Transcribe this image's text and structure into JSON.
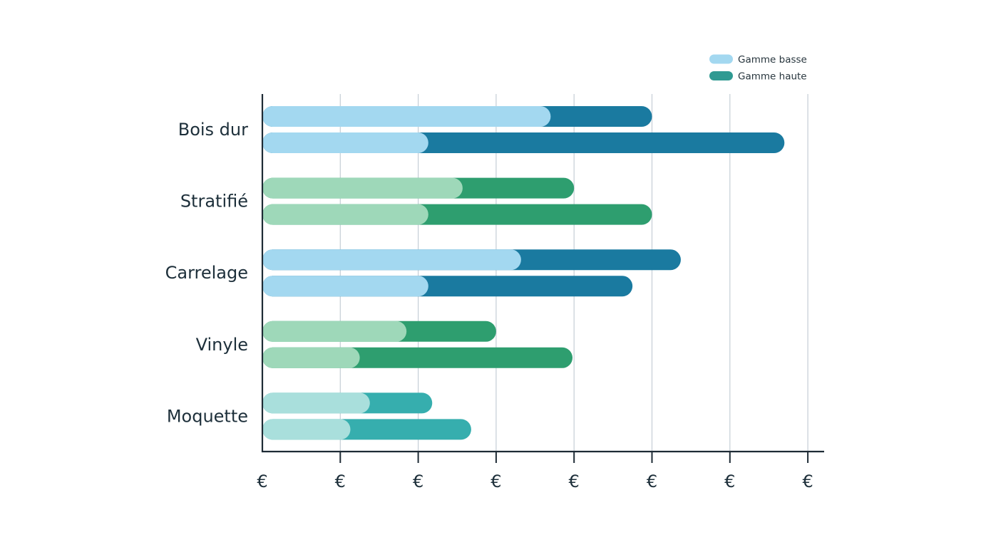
{
  "chart_data": {
    "type": "bar",
    "orientation": "horizontal",
    "stacked": true,
    "categories": [
      "Bois dur",
      "Stratifié",
      "Carrelage",
      "Vinyle",
      "Moquette"
    ],
    "x_ticks": [
      "€",
      "€",
      "€",
      "€",
      "€",
      "€",
      "€",
      "€"
    ],
    "xlim": [
      0,
      7
    ],
    "grid": true,
    "legend_position": "top-right",
    "legend": [
      {
        "label": "Gamme basse",
        "color": "#a3d8f0"
      },
      {
        "label": "Gamme haute",
        "color": "#2f9a92"
      }
    ],
    "rows": [
      {
        "category": "Bois dur",
        "bars": [
          {
            "low": 3.7,
            "total": 5.0,
            "low_color": "#a3d8f0",
            "high_color": "#1a7aa0"
          },
          {
            "low": 2.13,
            "total": 6.7,
            "low_color": "#a3d8f0",
            "high_color": "#1a7aa0"
          }
        ]
      },
      {
        "category": "Stratifié",
        "bars": [
          {
            "low": 2.57,
            "total": 4.0,
            "low_color": "#9ed8b9",
            "high_color": "#2e9e6f"
          },
          {
            "low": 2.13,
            "total": 5.0,
            "low_color": "#9ed8b9",
            "high_color": "#2e9e6f"
          }
        ]
      },
      {
        "category": "Carrelage",
        "bars": [
          {
            "low": 3.32,
            "total": 5.37,
            "low_color": "#a3d8f0",
            "high_color": "#1a7aa0"
          },
          {
            "low": 2.13,
            "total": 4.75,
            "low_color": "#a3d8f0",
            "high_color": "#1a7aa0"
          }
        ]
      },
      {
        "category": "Vinyle",
        "bars": [
          {
            "low": 1.85,
            "total": 3.0,
            "low_color": "#9ed8b9",
            "high_color": "#2e9e6f"
          },
          {
            "low": 1.25,
            "total": 3.98,
            "low_color": "#9ed8b9",
            "high_color": "#2e9e6f"
          }
        ]
      },
      {
        "category": "Moquette",
        "bars": [
          {
            "low": 1.38,
            "total": 2.18,
            "low_color": "#a9dfdc",
            "high_color": "#36aeae"
          },
          {
            "low": 1.13,
            "total": 2.68,
            "low_color": "#a9dfdc",
            "high_color": "#36aeae"
          }
        ]
      }
    ]
  },
  "colors": {
    "axis": "#1e2b35",
    "grid": "#c5ced6"
  }
}
